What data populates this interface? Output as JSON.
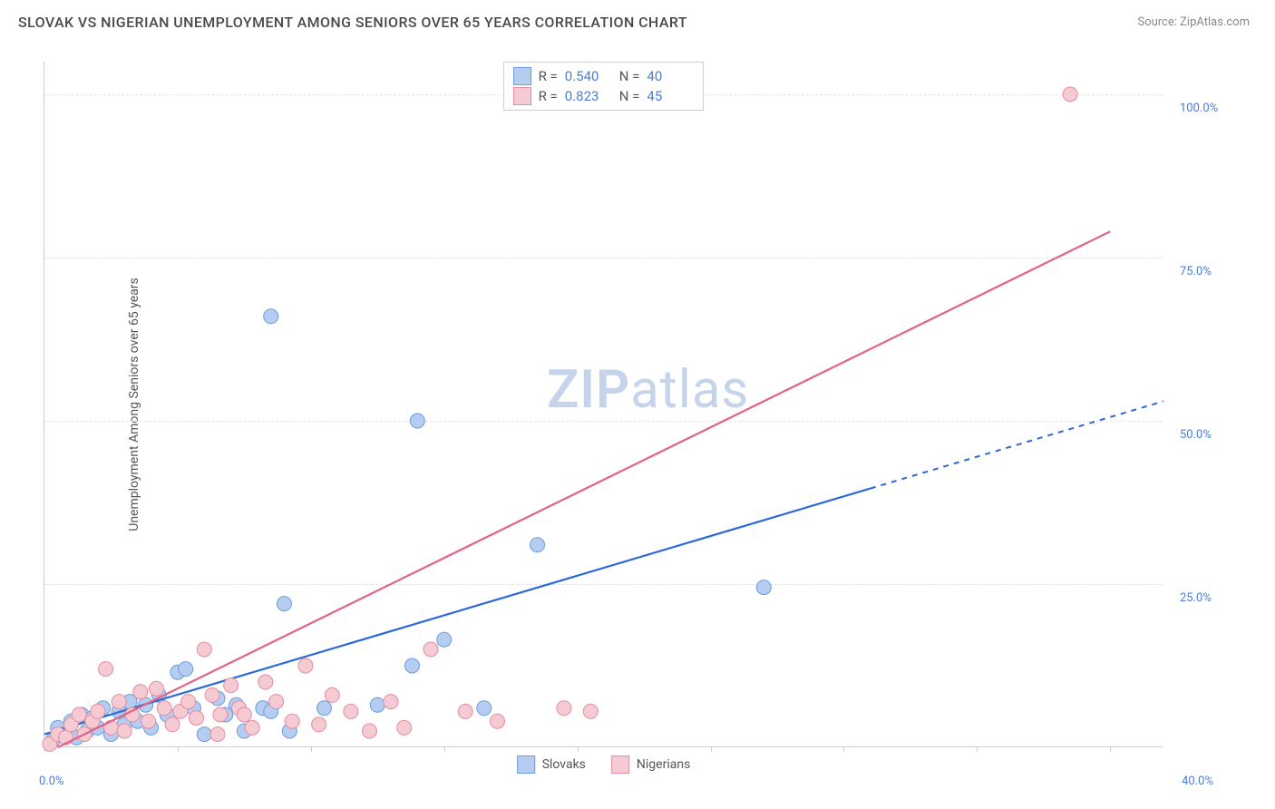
{
  "title": "SLOVAK VS NIGERIAN UNEMPLOYMENT AMONG SENIORS OVER 65 YEARS CORRELATION CHART",
  "source": "Source: ZipAtlas.com",
  "ylabel": "Unemployment Among Seniors over 65 years",
  "watermark_left": "ZIP",
  "watermark_right": "atlas",
  "chart": {
    "type": "scatter-correlation",
    "background_color": "#ffffff",
    "grid_color": "#e4e4e4",
    "axis_color": "#cccccc",
    "tick_label_color": "#4a7fd6",
    "xlim": [
      0,
      42
    ],
    "ylim": [
      0,
      105
    ],
    "ytick_values": [
      25,
      50,
      75,
      100
    ],
    "ytick_labels": [
      "25.0%",
      "50.0%",
      "75.0%",
      "100.0%"
    ],
    "xtick_values": [
      0,
      5,
      10,
      15,
      20,
      25,
      30,
      35,
      40
    ],
    "xtick_label_left": "0.0%",
    "xtick_label_right": "40.0%",
    "marker_radius": 8,
    "marker_stroke_width": 1,
    "series": [
      {
        "name": "Slovaks",
        "fill_color": "#b5cdf0",
        "stroke_color": "#6a9de0",
        "line_color": "#2b68d8",
        "R": "0.540",
        "N": "40",
        "trend": {
          "x1": 0,
          "y1": 2,
          "x2": 42,
          "y2": 53,
          "solid_until_x": 31
        },
        "points": [
          [
            0.3,
            1
          ],
          [
            0.5,
            3
          ],
          [
            0.7,
            2
          ],
          [
            1.0,
            4
          ],
          [
            1.2,
            1.5
          ],
          [
            1.4,
            5
          ],
          [
            1.6,
            2.5
          ],
          [
            1.8,
            4.5
          ],
          [
            2.0,
            3
          ],
          [
            2.2,
            6
          ],
          [
            2.5,
            2
          ],
          [
            2.8,
            5.5
          ],
          [
            3.0,
            3.5
          ],
          [
            3.2,
            7
          ],
          [
            3.5,
            4
          ],
          [
            3.8,
            6.5
          ],
          [
            4.0,
            3
          ],
          [
            4.3,
            8
          ],
          [
            4.6,
            5
          ],
          [
            5.0,
            11.5
          ],
          [
            5.3,
            12
          ],
          [
            5.6,
            6
          ],
          [
            6.0,
            2
          ],
          [
            6.5,
            7.5
          ],
          [
            6.8,
            5
          ],
          [
            7.2,
            6.5
          ],
          [
            7.5,
            2.5
          ],
          [
            8.2,
            6
          ],
          [
            8.5,
            5.5
          ],
          [
            9.0,
            22
          ],
          [
            9.2,
            2.5
          ],
          [
            10.5,
            6
          ],
          [
            12.5,
            6.5
          ],
          [
            13.8,
            12.5
          ],
          [
            14,
            50
          ],
          [
            15,
            16.5
          ],
          [
            16.5,
            6
          ],
          [
            18.5,
            31
          ],
          [
            27,
            24.5
          ],
          [
            8.5,
            66
          ]
        ]
      },
      {
        "name": "Nigerians",
        "fill_color": "#f4cad3",
        "stroke_color": "#e58ca0",
        "line_color": "#e16587",
        "R": "0.823",
        "N": "45",
        "trend": {
          "x1": 0.5,
          "y1": 0,
          "x2": 40,
          "y2": 79,
          "solid_until_x": 40
        },
        "points": [
          [
            0.2,
            0.5
          ],
          [
            0.5,
            2
          ],
          [
            0.8,
            1.5
          ],
          [
            1.0,
            3.5
          ],
          [
            1.3,
            5
          ],
          [
            1.5,
            2
          ],
          [
            1.8,
            4
          ],
          [
            2.0,
            5.5
          ],
          [
            2.3,
            12
          ],
          [
            2.5,
            3
          ],
          [
            2.8,
            7
          ],
          [
            3.0,
            2.5
          ],
          [
            3.3,
            5
          ],
          [
            3.6,
            8.5
          ],
          [
            3.9,
            4
          ],
          [
            4.2,
            9
          ],
          [
            4.5,
            6
          ],
          [
            4.8,
            3.5
          ],
          [
            5.1,
            5.5
          ],
          [
            5.4,
            7
          ],
          [
            5.7,
            4.5
          ],
          [
            6.0,
            15
          ],
          [
            6.3,
            8
          ],
          [
            6.6,
            5
          ],
          [
            7.0,
            9.5
          ],
          [
            7.3,
            6
          ],
          [
            7.8,
            3
          ],
          [
            8.3,
            10
          ],
          [
            8.7,
            7
          ],
          [
            9.3,
            4
          ],
          [
            9.8,
            12.5
          ],
          [
            10.3,
            3.5
          ],
          [
            10.8,
            8
          ],
          [
            11.5,
            5.5
          ],
          [
            12.2,
            2.5
          ],
          [
            13.0,
            7
          ],
          [
            13.5,
            3
          ],
          [
            14.5,
            15
          ],
          [
            15.8,
            5.5
          ],
          [
            17.0,
            4
          ],
          [
            19.5,
            6
          ],
          [
            20.5,
            5.5
          ],
          [
            38.5,
            100
          ],
          [
            6.5,
            2
          ],
          [
            7.5,
            5
          ]
        ]
      }
    ]
  },
  "legend": {
    "series1_label": "Slovaks",
    "series2_label": "Nigerians",
    "R_label": "R =",
    "N_label": "N ="
  }
}
